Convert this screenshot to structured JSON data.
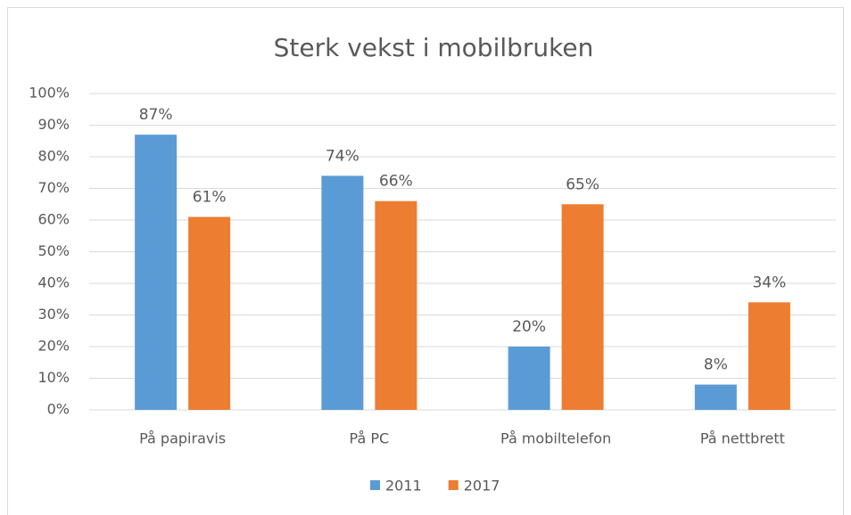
{
  "chart_data": {
    "type": "bar",
    "title": "Sterk vekst i mobilbruken",
    "categories": [
      "På papiravis",
      "På PC",
      "På mobiltelefon",
      "På nettbrett"
    ],
    "series": [
      {
        "name": "2011",
        "color": "#5b9bd5",
        "values": [
          87,
          74,
          20,
          8
        ],
        "value_labels": [
          "87%",
          "74%",
          "20%",
          "8%"
        ]
      },
      {
        "name": "2017",
        "color": "#ed7d31",
        "values": [
          61,
          66,
          65,
          34
        ],
        "value_labels": [
          "61%",
          "66%",
          "65%",
          "34%"
        ]
      }
    ],
    "ylim": [
      0,
      100
    ],
    "yticks": [
      {
        "value": 0,
        "label": "0%"
      },
      {
        "value": 10,
        "label": "10%"
      },
      {
        "value": 20,
        "label": "20%"
      },
      {
        "value": 30,
        "label": "30%"
      },
      {
        "value": 40,
        "label": "40%"
      },
      {
        "value": 50,
        "label": "50%"
      },
      {
        "value": 60,
        "label": "60%"
      },
      {
        "value": 70,
        "label": "70%"
      },
      {
        "value": 80,
        "label": "80%"
      },
      {
        "value": 90,
        "label": "90%"
      },
      {
        "value": 100,
        "label": "100%"
      }
    ],
    "grid": true,
    "legend": "bottom"
  }
}
